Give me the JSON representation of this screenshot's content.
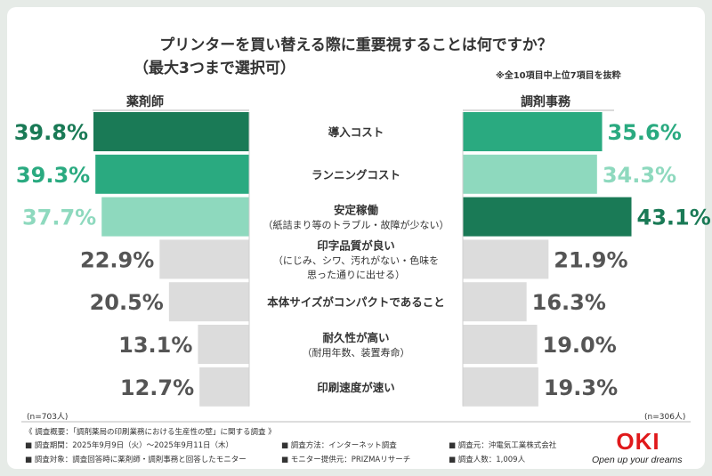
{
  "chart_data": {
    "type": "bar",
    "title": "プリンターを買い替える際に重要視することは何ですか？",
    "subtitle": "（最大3つまで選択可）",
    "note": "※全10項目中上位7項目を抜粋",
    "unit": "%",
    "xlim": [
      0,
      45
    ],
    "categories": [
      [
        "導入コスト"
      ],
      [
        "ランニングコスト"
      ],
      [
        "安定稼働",
        "（紙詰まり等のトラブル・故障が少ない）"
      ],
      [
        "印字品質が良い",
        "（にじみ、シワ、汚れがない・色味を",
        "思った通りに出せる）"
      ],
      [
        "本体サイズがコンパクトであること"
      ],
      [
        "耐久性が高い",
        "（耐用年数、装置寿命）"
      ],
      [
        "印刷速度が速い"
      ]
    ],
    "series": [
      {
        "name": "薬剤師",
        "n_label": "(n=703人)",
        "values": [
          39.8,
          39.3,
          37.7,
          22.9,
          20.5,
          13.1,
          12.7
        ],
        "labels": [
          "39.8%",
          "39.3%",
          "37.7%",
          "22.9%",
          "20.5%",
          "13.1%",
          "12.7%"
        ],
        "ranks": [
          1,
          2,
          3,
          0,
          0,
          0,
          0
        ]
      },
      {
        "name": "調剤事務",
        "n_label": "(n=306人)",
        "values": [
          35.6,
          34.3,
          43.1,
          21.9,
          16.3,
          19.0,
          19.3
        ],
        "labels": [
          "35.6%",
          "34.3%",
          "43.1%",
          "21.9%",
          "16.3%",
          "19.0%",
          "19.3%"
        ],
        "ranks": [
          2,
          3,
          1,
          0,
          0,
          0,
          0
        ]
      }
    ]
  },
  "colors": {
    "rank1": "#1a7a56",
    "rank2": "#2aaa80",
    "rank3": "#8ed9be",
    "other": "#dcdcdc",
    "text_other": "#555555",
    "oki_red": "#e0191b"
  },
  "footer": {
    "survey_title": "《 調査概要：「調剤薬局の印刷業務における生産性の壁」に関する調査 》",
    "rows": [
      [
        "■ 調査期間：2025年9月9日（火）～2025年9月11日（木）",
        "■ 調査方法：インターネット調査",
        "■ 調査元：沖電気工業株式会社"
      ],
      [
        "■ 調査対象：調査回答時に薬剤師・調剤事務と回答したモニター",
        "■ モニター提供元：PRIZMAリサーチ",
        "■ 調査人数：1,009人"
      ]
    ]
  },
  "brand": {
    "logo": "OKI",
    "tagline": "Open up your dreams"
  }
}
